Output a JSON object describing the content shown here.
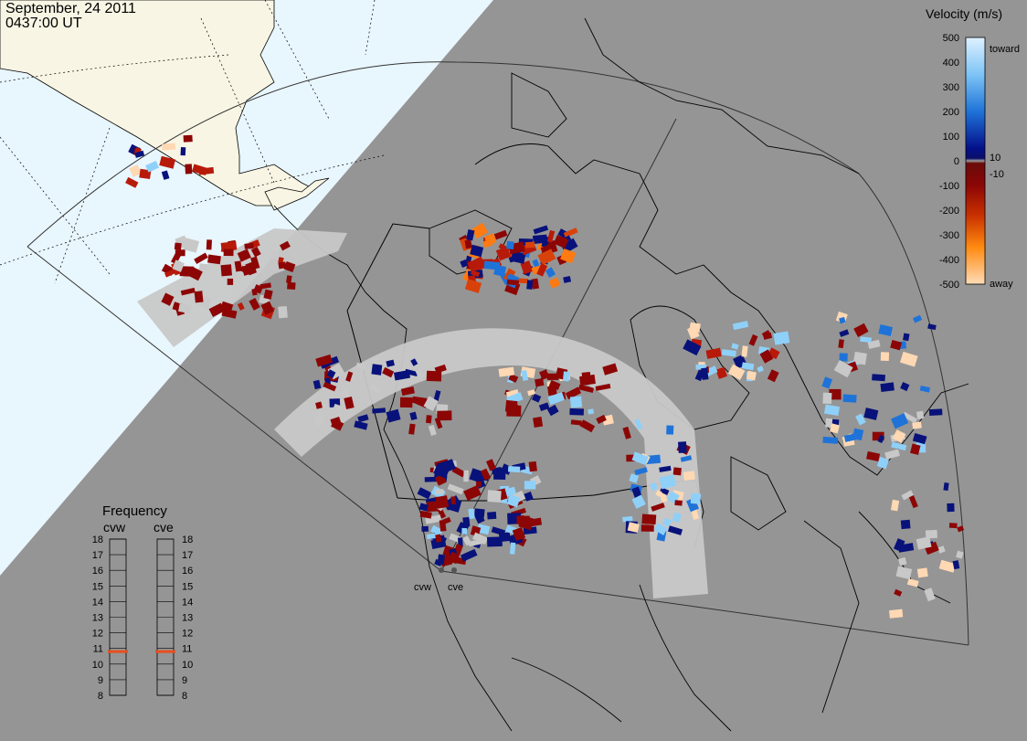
{
  "header": {
    "date": "September, 24 2011",
    "time": "0437:00 UT"
  },
  "colors": {
    "ocean": "#e8f6fd",
    "land_light": "#f8f5e4",
    "night_gray": "#959595",
    "gs_gray": "#c8c8c8",
    "coast": "#000000"
  },
  "legend": {
    "title": "Velocity (m/s)",
    "ticks": [
      "500",
      "400",
      "300",
      "200",
      "100",
      "10",
      "0",
      "-10",
      "-100",
      "-200",
      "-300",
      "-400",
      "-500"
    ],
    "toward_label": "toward",
    "away_label": "away"
  },
  "frequency": {
    "title": "Frequency",
    "left_radar": "cvw",
    "right_radar": "cve",
    "levels": [
      "18",
      "17",
      "16",
      "15",
      "14",
      "13",
      "12",
      "11",
      "10",
      "9",
      "8"
    ],
    "cvw_value": 10.8,
    "cve_value": 10.8
  },
  "radars": [
    {
      "code": "cvw"
    },
    {
      "code": "cve"
    }
  ]
}
